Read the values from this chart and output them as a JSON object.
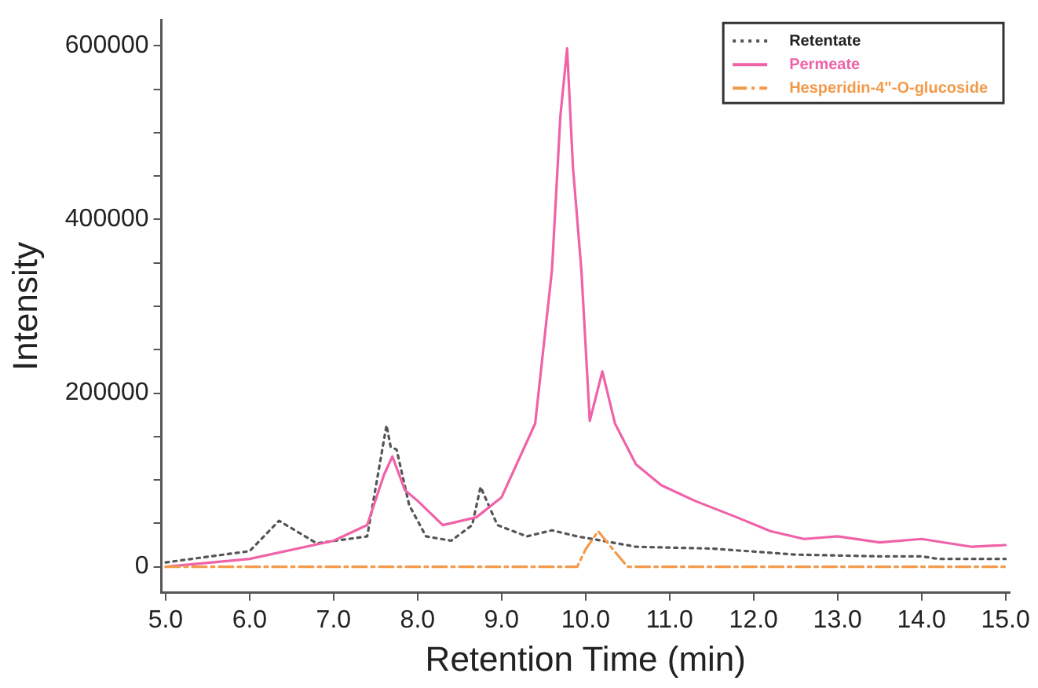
{
  "chart_data": {
    "type": "line",
    "xlabel": "Retention Time (min)",
    "ylabel": "Intensity",
    "xlim": [
      4.95,
      15.05
    ],
    "ylim": [
      -30000,
      630000
    ],
    "xticks": [
      {
        "value": 5,
        "label": "5.0"
      },
      {
        "value": 6,
        "label": "6.0"
      },
      {
        "value": 7,
        "label": "7.0"
      },
      {
        "value": 8,
        "label": "8.0"
      },
      {
        "value": 9,
        "label": "9.0"
      },
      {
        "value": 10,
        "label": "10.0"
      },
      {
        "value": 11,
        "label": "11.0"
      },
      {
        "value": 12,
        "label": "12.0"
      },
      {
        "value": 13,
        "label": "13.0"
      },
      {
        "value": 14,
        "label": "14.0"
      },
      {
        "value": 15,
        "label": "15.0"
      }
    ],
    "yticks": [
      0,
      {
        "value": 50000,
        "label": null
      },
      {
        "value": 100000,
        "label": null
      },
      {
        "value": 150000,
        "label": null
      },
      200000,
      {
        "value": 250000,
        "label": null
      },
      {
        "value": 300000,
        "label": null
      },
      {
        "value": 350000,
        "label": null
      },
      400000,
      {
        "value": 450000,
        "label": null
      },
      {
        "value": 500000,
        "label": null
      },
      {
        "value": 550000,
        "label": null
      },
      600000
    ],
    "grid": false,
    "legend": "top right",
    "marker": "none",
    "series": [
      {
        "name": "Retentate",
        "color": "#555555",
        "line_style": "dotted",
        "x": [
          5.0,
          6.0,
          6.35,
          6.8,
          7.4,
          7.63,
          7.68,
          7.75,
          7.9,
          8.1,
          8.4,
          8.65,
          8.75,
          8.95,
          9.3,
          9.6,
          9.9,
          10.2,
          10.6,
          11.5,
          12.5,
          13.5,
          14.0,
          14.2,
          15.0
        ],
        "values": [
          5000,
          18000,
          53000,
          27000,
          35000,
          163000,
          138000,
          135000,
          71000,
          35000,
          30000,
          48000,
          92000,
          48000,
          35000,
          42000,
          35000,
          30000,
          23000,
          21000,
          14000,
          12000,
          12000,
          9000,
          9000
        ]
      },
      {
        "name": "Permeate",
        "color": "#f062a8",
        "line_style": "solid",
        "x": [
          5.0,
          6.0,
          7.0,
          7.4,
          7.6,
          7.7,
          7.85,
          8.0,
          8.3,
          8.7,
          9.0,
          9.4,
          9.6,
          9.7,
          9.78,
          9.85,
          9.95,
          10.05,
          10.2,
          10.35,
          10.6,
          10.9,
          11.3,
          11.8,
          12.2,
          12.6,
          13.0,
          13.5,
          14.0,
          14.6,
          15.0
        ],
        "values": [
          0,
          9000,
          30000,
          48000,
          106000,
          127000,
          88000,
          76000,
          48000,
          57000,
          80000,
          165000,
          342000,
          519000,
          597000,
          460000,
          342000,
          168000,
          225000,
          165000,
          118000,
          94000,
          76000,
          57000,
          41000,
          32000,
          35000,
          28000,
          32000,
          23000,
          25000
        ]
      },
      {
        "name": "Hesperidin-4\"-O-glucoside",
        "color": "#f39a4a",
        "line_style": "dashed",
        "x": [
          5.0,
          9.9,
          10.0,
          10.15,
          10.3,
          10.5,
          15.0
        ],
        "values": [
          0,
          0,
          20000,
          41000,
          23000,
          0,
          0
        ]
      }
    ]
  }
}
